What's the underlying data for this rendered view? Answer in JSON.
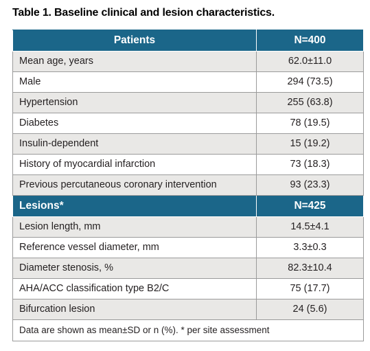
{
  "title": "Table 1. Baseline clinical and lesion characteristics.",
  "patients_section": {
    "header_label": "Patients",
    "header_value": "N=400",
    "rows": [
      {
        "label": "Mean age, years",
        "value": "62.0±11.0"
      },
      {
        "label": "Male",
        "value": "294 (73.5)"
      },
      {
        "label": "Hypertension",
        "value": "255 (63.8)"
      },
      {
        "label": "Diabetes",
        "value": "78 (19.5)"
      },
      {
        "label": "Insulin-dependent",
        "value": "15 (19.2)"
      },
      {
        "label": "History of myocardial infarction",
        "value": "73 (18.3)"
      },
      {
        "label": "Previous percutaneous coronary intervention",
        "value": "93 (23.3)"
      }
    ]
  },
  "lesions_section": {
    "header_label": "Lesions*",
    "header_value": "N=425",
    "rows": [
      {
        "label": "Lesion length, mm",
        "value": "14.5±4.1"
      },
      {
        "label": "Reference vessel diameter, mm",
        "value": "3.3±0.3"
      },
      {
        "label": "Diameter stenosis, %",
        "value": "82.3±10.4"
      },
      {
        "label": "AHA/ACC classification type B2/C",
        "value": "75 (17.7)"
      },
      {
        "label": "Bifurcation lesion",
        "value": "24 (5.6)"
      }
    ]
  },
  "footnote": "Data are shown as mean±SD or n (%). * per site assessment",
  "colors": {
    "header_bg": "#1b6689",
    "shaded_row_bg": "#e9e8e6",
    "border": "#9a9a9a"
  }
}
